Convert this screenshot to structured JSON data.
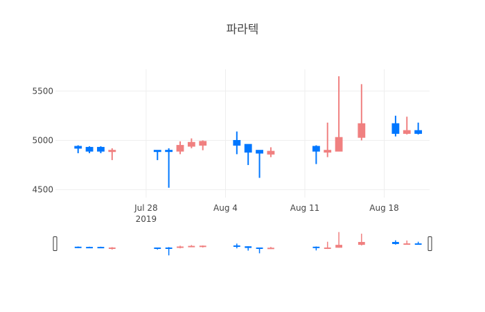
{
  "chart_data": {
    "type": "candlestick",
    "title": "파라텍",
    "xlabel": "",
    "ylabel": "",
    "ylim": [
      4420,
      5720
    ],
    "xlim": [
      "2019-07-20",
      "2019-08-22"
    ],
    "y_ticks": [
      4500,
      5000,
      5500
    ],
    "x_ticks": [
      {
        "date": "2019-07-28",
        "label": "Jul 28",
        "sublabel": "2019"
      },
      {
        "date": "2019-08-04",
        "label": "Aug 4",
        "sublabel": ""
      },
      {
        "date": "2019-08-11",
        "label": "Aug 11",
        "sublabel": ""
      },
      {
        "date": "2019-08-18",
        "label": "Aug 18",
        "sublabel": ""
      }
    ],
    "grid": true,
    "increasing_color": "#F08080",
    "decreasing_color": "#0077FF",
    "range_slider": true,
    "candles": [
      {
        "date": "2019-07-22",
        "open": 4940,
        "high": 4950,
        "low": 4870,
        "close": 4920
      },
      {
        "date": "2019-07-23",
        "open": 4930,
        "high": 4940,
        "low": 4870,
        "close": 4890
      },
      {
        "date": "2019-07-24",
        "open": 4930,
        "high": 4940,
        "low": 4870,
        "close": 4890
      },
      {
        "date": "2019-07-25",
        "open": 4890,
        "high": 4920,
        "low": 4800,
        "close": 4900
      },
      {
        "date": "2019-07-29",
        "open": 4900,
        "high": 4900,
        "low": 4800,
        "close": 4890
      },
      {
        "date": "2019-07-30",
        "open": 4900,
        "high": 4920,
        "low": 4520,
        "close": 4890
      },
      {
        "date": "2019-07-31",
        "open": 4890,
        "high": 4990,
        "low": 4860,
        "close": 4950
      },
      {
        "date": "2019-08-01",
        "open": 4940,
        "high": 5020,
        "low": 4920,
        "close": 4980
      },
      {
        "date": "2019-08-02",
        "open": 4950,
        "high": 5000,
        "low": 4900,
        "close": 4990
      },
      {
        "date": "2019-08-05",
        "open": 5000,
        "high": 5090,
        "low": 4860,
        "close": 4950
      },
      {
        "date": "2019-08-06",
        "open": 4960,
        "high": 4960,
        "low": 4750,
        "close": 4880
      },
      {
        "date": "2019-08-07",
        "open": 4900,
        "high": 4900,
        "low": 4620,
        "close": 4870
      },
      {
        "date": "2019-08-08",
        "open": 4860,
        "high": 4930,
        "low": 4830,
        "close": 4890
      },
      {
        "date": "2019-08-12",
        "open": 4940,
        "high": 4950,
        "low": 4760,
        "close": 4890
      },
      {
        "date": "2019-08-13",
        "open": 4880,
        "high": 5180,
        "low": 4830,
        "close": 4900
      },
      {
        "date": "2019-08-14",
        "open": 4890,
        "high": 5650,
        "low": 4890,
        "close": 5030
      },
      {
        "date": "2019-08-16",
        "open": 5030,
        "high": 5570,
        "low": 5000,
        "close": 5170
      },
      {
        "date": "2019-08-19",
        "open": 5170,
        "high": 5250,
        "low": 5040,
        "close": 5070
      },
      {
        "date": "2019-08-20",
        "open": 5070,
        "high": 5240,
        "low": 5060,
        "close": 5100
      },
      {
        "date": "2019-08-21",
        "open": 5100,
        "high": 5180,
        "low": 5060,
        "close": 5070
      }
    ]
  }
}
